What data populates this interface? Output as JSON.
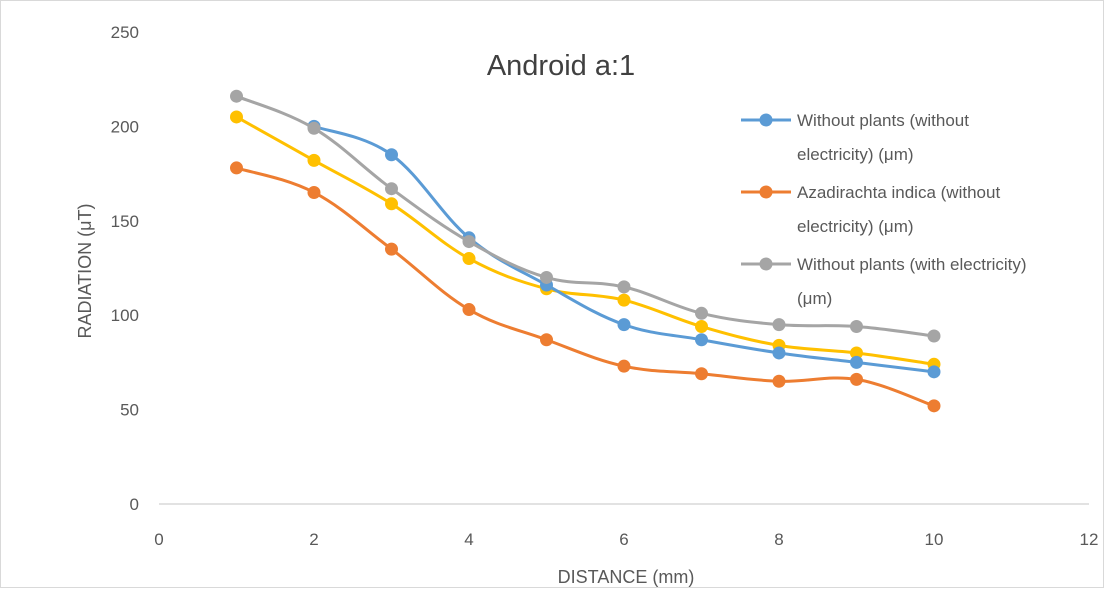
{
  "chart_data": {
    "type": "line",
    "title": "Android a:1",
    "xlabel": "DISTANCE (mm)",
    "ylabel": "RADIATION (μT)",
    "xlim": [
      0,
      12
    ],
    "ylim": [
      0,
      250
    ],
    "x_ticks": [
      0,
      2,
      4,
      6,
      8,
      10,
      12
    ],
    "y_ticks": [
      0,
      50,
      100,
      150,
      200,
      250
    ],
    "grid": false,
    "legend_position": "right",
    "x": [
      1,
      2,
      3,
      4,
      5,
      6,
      7,
      8,
      9,
      10
    ],
    "series": [
      {
        "name": "Without plants (without electricity) (μm)",
        "legend_lines": [
          "Without plants (without",
          "electricity) (μm)"
        ],
        "color": "#5b9bd5",
        "values": [
          null,
          200,
          185,
          141,
          116,
          95,
          87,
          80,
          75,
          70
        ]
      },
      {
        "name": "Azadirachta indica (without electricity) (μm)",
        "legend_lines": [
          "Azadirachta indica (without",
          "electricity) (μm)"
        ],
        "color": "#ed7d31",
        "values": [
          178,
          165,
          135,
          103,
          87,
          73,
          69,
          65,
          66,
          52
        ]
      },
      {
        "name": "Without plants (with electricity) (μm)",
        "legend_lines": [
          "Without plants (with electricity)",
          "(μm)"
        ],
        "color": "#a5a5a5",
        "values": [
          216,
          199,
          167,
          139,
          120,
          115,
          101,
          95,
          94,
          89
        ]
      },
      {
        "color": "#ffc000",
        "values": [
          205,
          182,
          159,
          130,
          114,
          108,
          94,
          84,
          80,
          74
        ]
      }
    ]
  }
}
